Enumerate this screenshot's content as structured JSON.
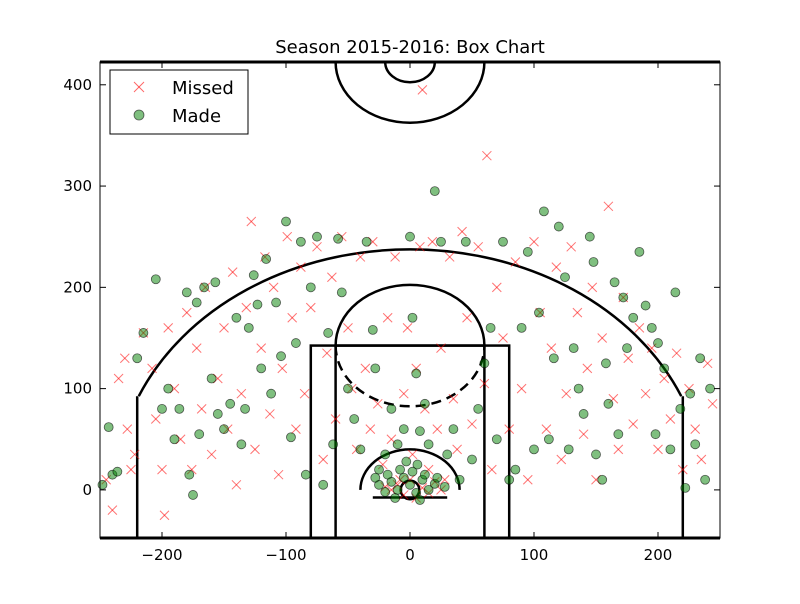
{
  "chart_data": {
    "type": "scatter",
    "title": "Season 2015-2016: Box Chart",
    "xlabel": "",
    "ylabel": "",
    "xlim": [
      -250,
      250
    ],
    "ylim": [
      -47.5,
      422.5
    ],
    "xticks": [
      -200,
      -100,
      0,
      100,
      200
    ],
    "yticks": [
      0,
      100,
      200,
      300,
      400
    ],
    "x_tick_labels": [
      "−200",
      "−100",
      "0",
      "100",
      "200"
    ],
    "y_tick_labels": [
      "0",
      "100",
      "200",
      "300",
      "400"
    ],
    "grid": false,
    "legend_position": "top-left",
    "legend": [
      {
        "label": "Missed",
        "marker": "x",
        "color": "#ff0000"
      },
      {
        "label": "Made",
        "marker": "circle",
        "color": "#008000"
      }
    ],
    "series": [
      {
        "name": "Missed",
        "marker": "x",
        "color": "#ff0000",
        "points": [
          [
            -245,
            10
          ],
          [
            -240,
            -20
          ],
          [
            -235,
            110
          ],
          [
            -230,
            130
          ],
          [
            -228,
            60
          ],
          [
            -225,
            20
          ],
          [
            -222,
            35
          ],
          [
            -215,
            155
          ],
          [
            -208,
            120
          ],
          [
            -205,
            70
          ],
          [
            -200,
            20
          ],
          [
            -198,
            -25
          ],
          [
            -195,
            160
          ],
          [
            -190,
            100
          ],
          [
            -185,
            50
          ],
          [
            -180,
            175
          ],
          [
            -176,
            20
          ],
          [
            -172,
            140
          ],
          [
            -168,
            80
          ],
          [
            -165,
            200
          ],
          [
            -160,
            35
          ],
          [
            -155,
            110
          ],
          [
            -150,
            160
          ],
          [
            -147,
            60
          ],
          [
            -143,
            215
          ],
          [
            -140,
            5
          ],
          [
            -136,
            95
          ],
          [
            -132,
            180
          ],
          [
            -128,
            265
          ],
          [
            -125,
            40
          ],
          [
            -120,
            140
          ],
          [
            -117,
            230
          ],
          [
            -113,
            75
          ],
          [
            -110,
            200
          ],
          [
            -106,
            15
          ],
          [
            -103,
            120
          ],
          [
            -99,
            250
          ],
          [
            -95,
            170
          ],
          [
            -92,
            60
          ],
          [
            -88,
            220
          ],
          [
            -85,
            95
          ],
          [
            -80,
            180
          ],
          [
            -75,
            240
          ],
          [
            -70,
            30
          ],
          [
            -67,
            135
          ],
          [
            -63,
            210
          ],
          [
            -60,
            70
          ],
          [
            -55,
            250
          ],
          [
            -50,
            160
          ],
          [
            -47,
            100
          ],
          [
            -43,
            40
          ],
          [
            -40,
            230
          ],
          [
            -36,
            120
          ],
          [
            -32,
            60
          ],
          [
            -30,
            245
          ],
          [
            -26,
            85
          ],
          [
            -22,
            25
          ],
          [
            -18,
            170
          ],
          [
            -15,
            50
          ],
          [
            -12,
            230
          ],
          [
            -8,
            10
          ],
          [
            -5,
            95
          ],
          [
            -2,
            160
          ],
          [
            2,
            35
          ],
          [
            5,
            120
          ],
          [
            8,
            240
          ],
          [
            10,
            395
          ],
          [
            12,
            80
          ],
          [
            15,
            20
          ],
          [
            18,
            245
          ],
          [
            22,
            60
          ],
          [
            25,
            140
          ],
          [
            28,
            10
          ],
          [
            32,
            230
          ],
          [
            35,
            90
          ],
          [
            38,
            40
          ],
          [
            42,
            255
          ],
          [
            46,
            170
          ],
          [
            50,
            65
          ],
          [
            55,
            240
          ],
          [
            60,
            105
          ],
          [
            62,
            330
          ],
          [
            66,
            20
          ],
          [
            70,
            200
          ],
          [
            75,
            150
          ],
          [
            80,
            60
          ],
          [
            85,
            225
          ],
          [
            90,
            100
          ],
          [
            95,
            10
          ],
          [
            100,
            245
          ],
          [
            105,
            175
          ],
          [
            110,
            60
          ],
          [
            114,
            140
          ],
          [
            118,
            220
          ],
          [
            122,
            30
          ],
          [
            126,
            95
          ],
          [
            130,
            240
          ],
          [
            135,
            175
          ],
          [
            140,
            55
          ],
          [
            143,
            120
          ],
          [
            147,
            200
          ],
          [
            150,
            10
          ],
          [
            155,
            150
          ],
          [
            160,
            280
          ],
          [
            164,
            90
          ],
          [
            168,
            40
          ],
          [
            172,
            190
          ],
          [
            176,
            130
          ],
          [
            180,
            65
          ],
          [
            185,
            160
          ],
          [
            190,
            95
          ],
          [
            195,
            140
          ],
          [
            200,
            40
          ],
          [
            205,
            110
          ],
          [
            210,
            70
          ],
          [
            215,
            135
          ],
          [
            220,
            20
          ],
          [
            225,
            100
          ],
          [
            230,
            60
          ],
          [
            235,
            30
          ],
          [
            240,
            125
          ],
          [
            244,
            85
          ],
          [
            -15,
            0
          ],
          [
            -10,
            5
          ],
          [
            -5,
            -5
          ],
          [
            0,
            10
          ],
          [
            5,
            -8
          ],
          [
            10,
            2
          ],
          [
            15,
            -3
          ],
          [
            20,
            8
          ],
          [
            25,
            0
          ],
          [
            -20,
            3
          ]
        ]
      },
      {
        "name": "Made",
        "marker": "circle",
        "color": "#008000",
        "points": [
          [
            -248,
            5
          ],
          [
            -243,
            62
          ],
          [
            -240,
            15
          ],
          [
            -236,
            18
          ],
          [
            -220,
            130
          ],
          [
            -215,
            155
          ],
          [
            -205,
            208
          ],
          [
            -200,
            80
          ],
          [
            -195,
            100
          ],
          [
            -190,
            50
          ],
          [
            -186,
            80
          ],
          [
            -180,
            195
          ],
          [
            -178,
            15
          ],
          [
            -175,
            -5
          ],
          [
            -172,
            185
          ],
          [
            -170,
            55
          ],
          [
            -166,
            200
          ],
          [
            -160,
            110
          ],
          [
            -157,
            205
          ],
          [
            -155,
            75
          ],
          [
            -150,
            60
          ],
          [
            -145,
            85
          ],
          [
            -140,
            170
          ],
          [
            -136,
            45
          ],
          [
            -133,
            80
          ],
          [
            -130,
            160
          ],
          [
            -126,
            212
          ],
          [
            -123,
            183
          ],
          [
            -120,
            120
          ],
          [
            -116,
            228
          ],
          [
            -112,
            95
          ],
          [
            -108,
            185
          ],
          [
            -104,
            132
          ],
          [
            -100,
            265
          ],
          [
            -96,
            52
          ],
          [
            -92,
            145
          ],
          [
            -88,
            245
          ],
          [
            -84,
            15
          ],
          [
            -80,
            200
          ],
          [
            -75,
            250
          ],
          [
            -70,
            5
          ],
          [
            -66,
            155
          ],
          [
            -62,
            45
          ],
          [
            -58,
            248
          ],
          [
            -55,
            195
          ],
          [
            -50,
            100
          ],
          [
            -45,
            70
          ],
          [
            -40,
            40
          ],
          [
            -35,
            245
          ],
          [
            -30,
            158
          ],
          [
            -28,
            120
          ],
          [
            -25,
            20
          ],
          [
            -20,
            35
          ],
          [
            -15,
            80
          ],
          [
            -10,
            45
          ],
          [
            -5,
            60
          ],
          [
            0,
            250
          ],
          [
            2,
            170
          ],
          [
            5,
            115
          ],
          [
            8,
            58
          ],
          [
            12,
            85
          ],
          [
            15,
            45
          ],
          [
            20,
            295
          ],
          [
            25,
            245
          ],
          [
            30,
            35
          ],
          [
            35,
            60
          ],
          [
            40,
            10
          ],
          [
            45,
            245
          ],
          [
            50,
            30
          ],
          [
            55,
            80
          ],
          [
            60,
            125
          ],
          [
            65,
            160
          ],
          [
            70,
            50
          ],
          [
            75,
            245
          ],
          [
            80,
            10
          ],
          [
            85,
            20
          ],
          [
            90,
            160
          ],
          [
            95,
            235
          ],
          [
            100,
            40
          ],
          [
            104,
            175
          ],
          [
            108,
            275
          ],
          [
            112,
            50
          ],
          [
            116,
            130
          ],
          [
            120,
            260
          ],
          [
            125,
            210
          ],
          [
            128,
            40
          ],
          [
            132,
            140
          ],
          [
            136,
            100
          ],
          [
            140,
            75
          ],
          [
            145,
            250
          ],
          [
            148,
            225
          ],
          [
            150,
            35
          ],
          [
            155,
            10
          ],
          [
            158,
            125
          ],
          [
            160,
            85
          ],
          [
            165,
            205
          ],
          [
            168,
            55
          ],
          [
            172,
            190
          ],
          [
            175,
            140
          ],
          [
            180,
            170
          ],
          [
            185,
            235
          ],
          [
            190,
            182
          ],
          [
            195,
            160
          ],
          [
            198,
            55
          ],
          [
            200,
            145
          ],
          [
            205,
            120
          ],
          [
            210,
            40
          ],
          [
            214,
            195
          ],
          [
            218,
            80
          ],
          [
            222,
            2
          ],
          [
            226,
            95
          ],
          [
            230,
            45
          ],
          [
            234,
            130
          ],
          [
            238,
            10
          ],
          [
            242,
            100
          ],
          [
            -25,
            5
          ],
          [
            -20,
            -2
          ],
          [
            -15,
            8
          ],
          [
            -10,
            0
          ],
          [
            -5,
            12
          ],
          [
            0,
            5
          ],
          [
            5,
            -3
          ],
          [
            10,
            10
          ],
          [
            15,
            0
          ],
          [
            20,
            6
          ],
          [
            -18,
            15
          ],
          [
            -8,
            20
          ],
          [
            2,
            18
          ],
          [
            12,
            15
          ],
          [
            22,
            12
          ],
          [
            -12,
            -8
          ],
          [
            8,
            -10
          ],
          [
            -3,
            28
          ],
          [
            6,
            25
          ],
          [
            -28,
            12
          ],
          [
            28,
            3
          ]
        ]
      }
    ]
  }
}
